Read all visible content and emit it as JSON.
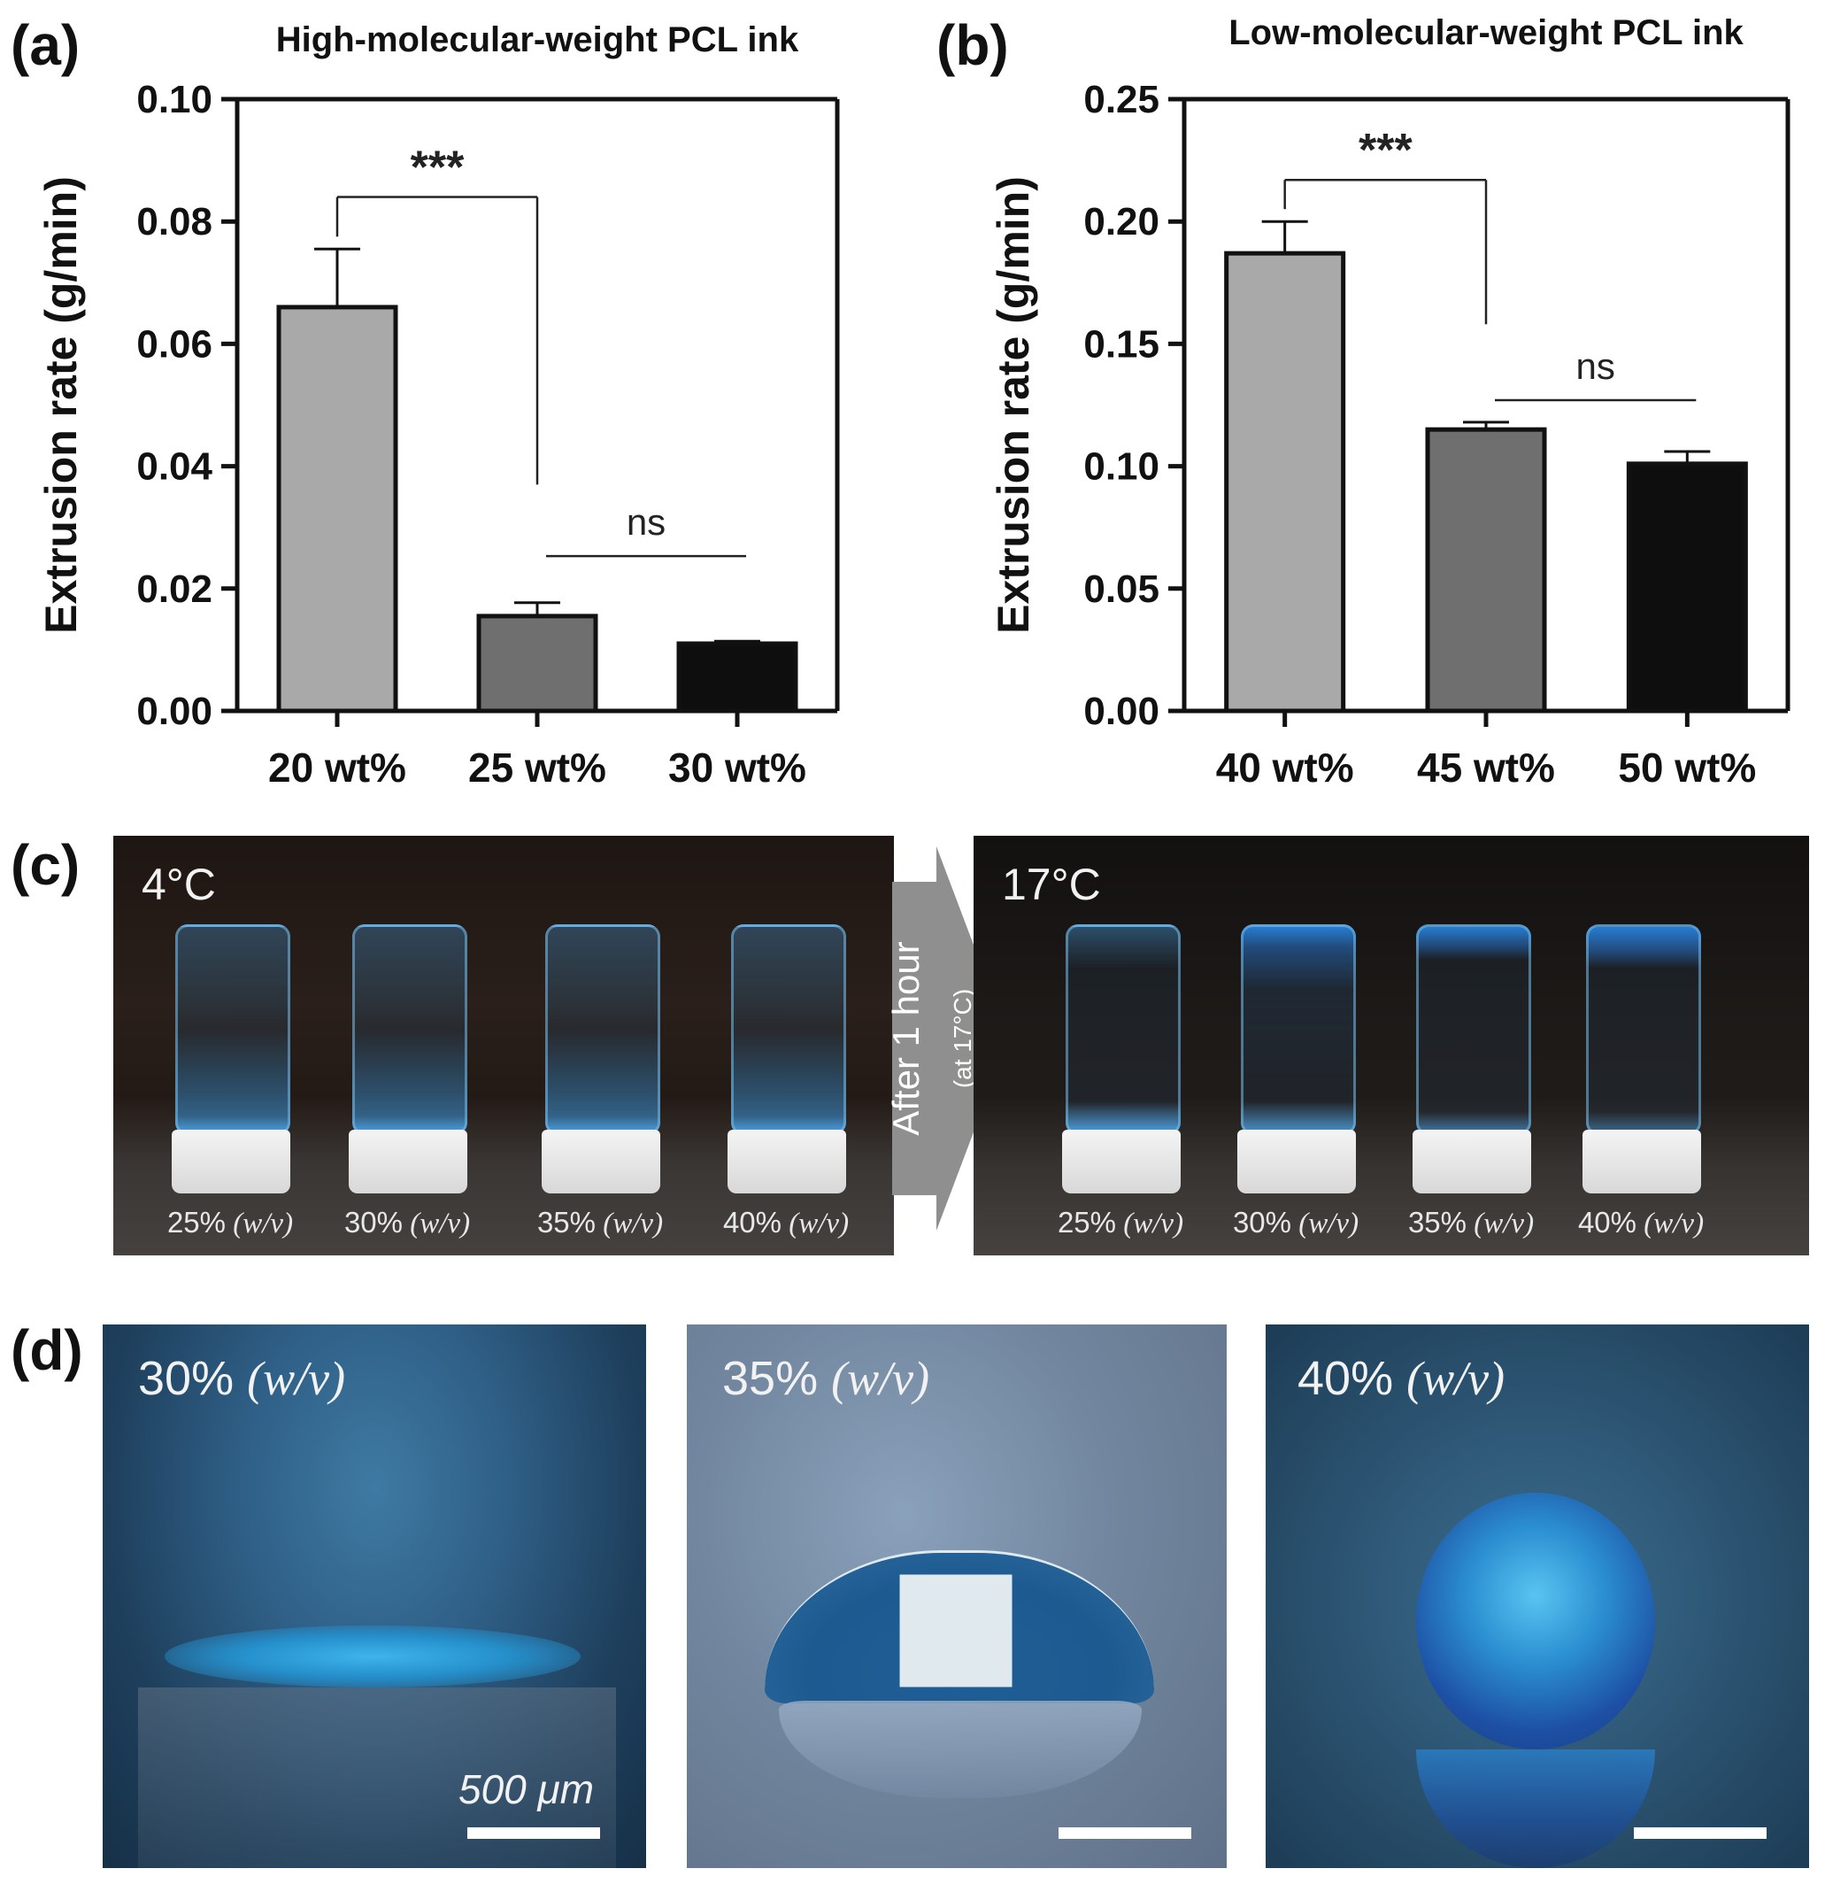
{
  "panels": {
    "a": "(a)",
    "b": "(b)",
    "c": "(c)",
    "d": "(d)"
  },
  "chart_data": [
    {
      "type": "bar",
      "title": "High-molecular-weight PCL ink",
      "ylabel": "Extrusion rate (g/min)",
      "xlabel": "",
      "categories": [
        "20 wt%",
        "25 wt%",
        "30 wt%"
      ],
      "values": [
        0.066,
        0.0155,
        0.011
      ],
      "errors": [
        0.0095,
        0.0022,
        0.0004
      ],
      "bar_colors": [
        "#a9a9a9",
        "#6f6f6f",
        "#0e0e0e"
      ],
      "ylim": [
        0,
        0.1
      ],
      "yticks": [
        "0.00",
        "0.02",
        "0.04",
        "0.06",
        "0.08",
        "0.10"
      ],
      "ytick_values": [
        0,
        0.02,
        0.04,
        0.06,
        0.08,
        0.1
      ],
      "grid": false,
      "annotations": [
        {
          "text": "***",
          "from": 0,
          "to": 1,
          "y": 0.084,
          "drop_to": 0.037
        },
        {
          "text": "ns",
          "from": 1,
          "to": 2,
          "y": 0.0253
        }
      ]
    },
    {
      "type": "bar",
      "title": "Low-molecular-weight PCL ink",
      "ylabel": "Extrusion rate (g/min)",
      "xlabel": "",
      "categories": [
        "40 wt%",
        "45 wt%",
        "50 wt%"
      ],
      "values": [
        0.187,
        0.115,
        0.101
      ],
      "errors": [
        0.013,
        0.003,
        0.005
      ],
      "bar_colors": [
        "#a9a9a9",
        "#6f6f6f",
        "#0e0e0e"
      ],
      "ylim": [
        0,
        0.25
      ],
      "yticks": [
        "0.00",
        "0.05",
        "0.10",
        "0.15",
        "0.20",
        "0.25"
      ],
      "ytick_values": [
        0,
        0.05,
        0.1,
        0.15,
        0.2,
        0.25
      ],
      "grid": false,
      "annotations": [
        {
          "text": "***",
          "from": 0,
          "to": 1,
          "y": 0.217,
          "drop_to": 0.158
        },
        {
          "text": "ns",
          "from": 1,
          "to": 2,
          "y": 0.127
        }
      ]
    }
  ],
  "panel_c": {
    "left_temp": "4°C",
    "right_temp": "17°C",
    "arrow_text": "After 1 hour",
    "arrow_subtext": "(at 17°C)",
    "left_labels": [
      {
        "pct": "25%",
        "unit": "(w/v)"
      },
      {
        "pct": "30%",
        "unit": "(w/v)"
      },
      {
        "pct": "35%",
        "unit": "(w/v)"
      },
      {
        "pct": "40%",
        "unit": "(w/v)"
      }
    ],
    "right_labels": [
      {
        "pct": "25%",
        "unit": "(w/v)"
      },
      {
        "pct": "30%",
        "unit": "(w/v)"
      },
      {
        "pct": "35%",
        "unit": "(w/v)"
      },
      {
        "pct": "40%",
        "unit": "(w/v)"
      }
    ]
  },
  "panel_d": {
    "images": [
      {
        "pct": "30%",
        "unit": "(w/v)"
      },
      {
        "pct": "35%",
        "unit": "(w/v)"
      },
      {
        "pct": "40%",
        "unit": "(w/v)"
      }
    ],
    "scale_bar": "500 μm"
  }
}
